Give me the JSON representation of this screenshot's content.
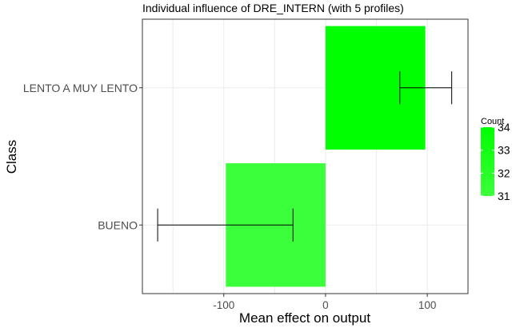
{
  "chart_data": {
    "type": "bar",
    "orientation": "horizontal",
    "title": "Individual influence of DRE_INTERN (with 5 profiles)",
    "xlabel": "Mean effect on output",
    "ylabel": "Class",
    "categories": [
      "BUENO",
      "LENTO A MUY LENTO"
    ],
    "values": [
      -98,
      98
    ],
    "error_low": [
      -165,
      73
    ],
    "error_high": [
      -32,
      124
    ],
    "counts": [
      31,
      34
    ],
    "xlim": [
      -180,
      140
    ],
    "xticks": [
      -100,
      0,
      100
    ],
    "xtick_labels": [
      "-100",
      "0",
      "100"
    ],
    "grid": true,
    "legend": {
      "title": "Count",
      "placement": "right",
      "min": 31,
      "max": 34,
      "ticks": [
        31,
        32,
        33,
        34
      ],
      "tick_labels": [
        "31",
        "32",
        "33",
        "34"
      ],
      "color_low": "#3cff3c",
      "color_high": "#00ff00"
    }
  }
}
